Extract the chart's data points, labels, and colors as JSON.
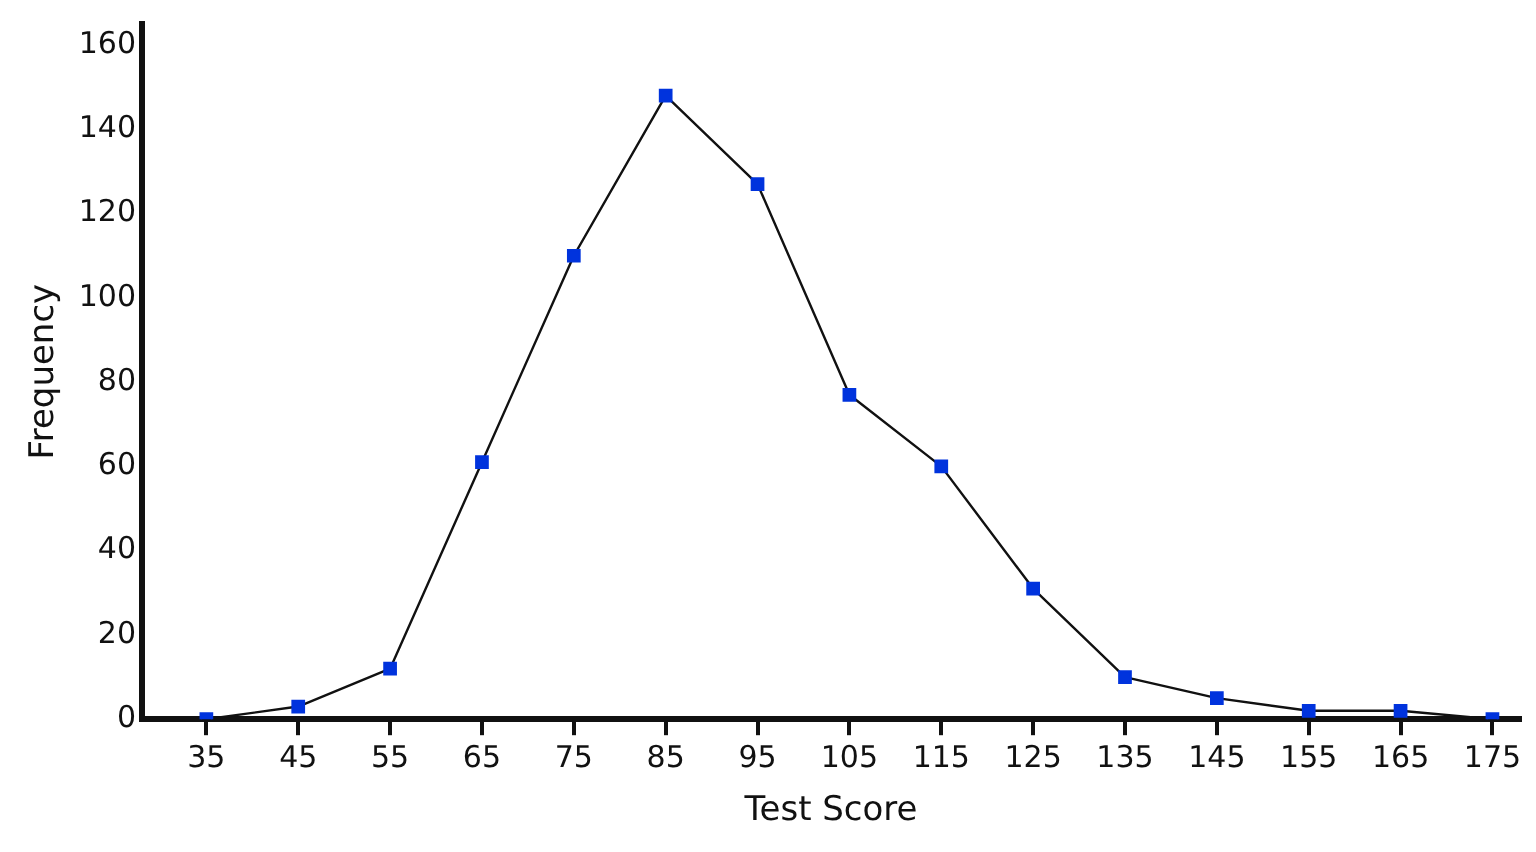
{
  "chart_data": {
    "type": "line",
    "xlabel": "Test Score",
    "ylabel": "Frequency",
    "x": [
      35,
      45,
      55,
      65,
      75,
      85,
      95,
      105,
      115,
      125,
      135,
      145,
      155,
      165,
      175
    ],
    "series": [
      {
        "color": "#0033dd",
        "values": [
          0,
          3,
          12,
          61,
          110,
          148,
          127,
          77,
          60,
          31,
          10,
          5,
          2,
          2,
          0
        ]
      }
    ],
    "xlim": [
      28,
      178
    ],
    "xticks": [
      35,
      45,
      55,
      65,
      75,
      85,
      95,
      105,
      115,
      125,
      135,
      145,
      155,
      165,
      175
    ],
    "ylim": [
      0,
      165
    ],
    "yticks": [
      0,
      20,
      40,
      60,
      80,
      100,
      120,
      140,
      160
    ],
    "grid": false,
    "legend": false,
    "marker": "square",
    "line_style": "solid"
  }
}
